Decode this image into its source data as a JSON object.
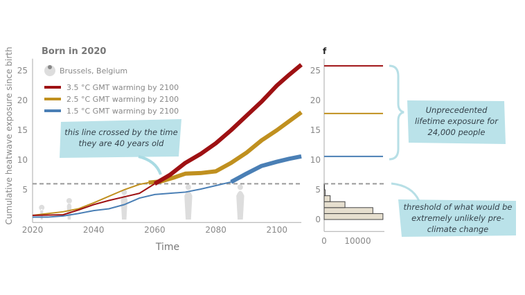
{
  "chart_data": [
    {
      "type": "line",
      "title": "Born in 2020",
      "subtitle": "Brussels, Belgium",
      "xlabel": "Time",
      "ylabel": "Cumulative heatwave exposure since birth",
      "xlim": [
        2020,
        2108
      ],
      "ylim": [
        -0.5,
        27
      ],
      "xticks": [
        2020,
        2040,
        2060,
        2080,
        2100
      ],
      "yticks": [
        5,
        10,
        15,
        20,
        25
      ],
      "threshold": 6,
      "series": [
        {
          "name": "3.5 °C GMT warming by 2100",
          "color": "#9e1113",
          "x": [
            2020,
            2030,
            2035,
            2040,
            2045,
            2050,
            2055,
            2060,
            2065,
            2070,
            2075,
            2080,
            2085,
            2090,
            2095,
            2100,
            2104,
            2108
          ],
          "y": [
            0.7,
            0.8,
            1.6,
            2.5,
            3.2,
            3.8,
            4.4,
            6.0,
            7.5,
            9.5,
            11,
            12.8,
            15,
            17.4,
            19.8,
            22.5,
            24.3,
            26
          ]
        },
        {
          "name": "2.5 °C GMT warming by 2100",
          "color": "#c0901f",
          "x": [
            2020,
            2025,
            2030,
            2035,
            2040,
            2045,
            2050,
            2055,
            2058,
            2062,
            2066,
            2070,
            2075,
            2080,
            2085,
            2090,
            2095,
            2100,
            2104,
            2108
          ],
          "y": [
            0.7,
            1.0,
            1.3,
            1.8,
            2.8,
            3.9,
            5.0,
            5.9,
            6.2,
            6.4,
            7.0,
            7.7,
            7.8,
            8.1,
            9.5,
            11.2,
            13.3,
            15,
            16.5,
            18
          ]
        },
        {
          "name": "1.5 °C GMT warming by 2100",
          "color": "#4a7fb5",
          "x": [
            2020,
            2025,
            2030,
            2035,
            2040,
            2045,
            2050,
            2055,
            2060,
            2065,
            2070,
            2075,
            2080,
            2085,
            2090,
            2095,
            2100,
            2104,
            2108
          ],
          "y": [
            0.4,
            0.4,
            0.6,
            1.0,
            1.5,
            1.8,
            2.5,
            3.6,
            4.2,
            4.4,
            4.6,
            5.1,
            5.7,
            6.3,
            7.7,
            9.0,
            9.7,
            10.2,
            10.6
          ]
        }
      ],
      "annotation": "this line crossed by the time they are 40 years old"
    },
    {
      "type": "bar",
      "orientation": "horizontal",
      "panel_label": "f",
      "xticks": [
        0,
        10000
      ],
      "yticks": [
        0,
        5,
        10,
        15,
        20,
        25
      ],
      "bins": [
        [
          0,
          1
        ],
        [
          1,
          2
        ],
        [
          2,
          3
        ],
        [
          3,
          4
        ],
        [
          4,
          5
        ],
        [
          5,
          6
        ]
      ],
      "values": [
        17500,
        14500,
        6200,
        1800,
        300,
        100
      ],
      "levels": [
        {
          "series": "3.5 °C",
          "value": 25.8,
          "color": "#9e1113"
        },
        {
          "series": "2.5 °C",
          "value": 17.8,
          "color": "#c0901f"
        },
        {
          "series": "1.5 °C",
          "value": 10.6,
          "color": "#4a7fb5"
        }
      ],
      "annotations": [
        "Unprecedented lifetime exposure for 24,000 people",
        "threshold of what would be extremely unlikely pre-climate change"
      ]
    }
  ]
}
